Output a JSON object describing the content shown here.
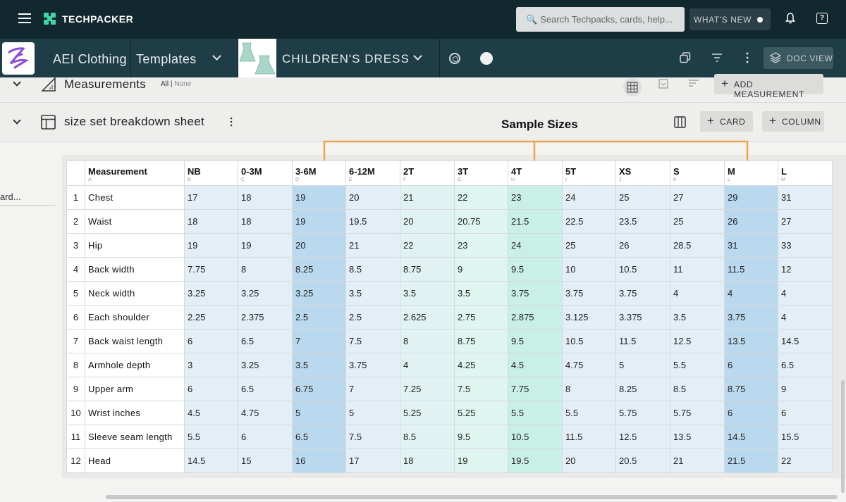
{
  "topbar": {
    "brand": "TECHPACKER",
    "search_placeholder": "Search Techpacks, cards, help...",
    "whats_new": "WHAT'S NEW"
  },
  "subbar": {
    "client": "AEI Clothing",
    "templates": "Templates",
    "product": "CHILDREN'S DRESS",
    "doc_view": "DOC VIEW"
  },
  "sections": {
    "measurements": {
      "title": "Measurements",
      "all": "All",
      "none": "None",
      "add_button": "ADD MEASUREMENT"
    },
    "sheet": {
      "title": "size set breakdown sheet",
      "card_button": "CARD",
      "column_button": "COLUMN"
    }
  },
  "annotation": {
    "label": "Sample Sizes"
  },
  "sidebar": {
    "truncated_text": "ard..."
  },
  "table": {
    "columns": [
      {
        "header": "Measurement",
        "letter": "A"
      },
      {
        "header": "NB",
        "letter": "B"
      },
      {
        "header": "0-3M",
        "letter": "C"
      },
      {
        "header": "3-6M",
        "letter": "D"
      },
      {
        "header": "6-12M",
        "letter": "E"
      },
      {
        "header": "2T",
        "letter": "F"
      },
      {
        "header": "3T",
        "letter": "G"
      },
      {
        "header": "4T",
        "letter": "H"
      },
      {
        "header": "5T",
        "letter": "I"
      },
      {
        "header": "XS",
        "letter": "J"
      },
      {
        "header": "S",
        "letter": "K"
      },
      {
        "header": "M",
        "letter": "L"
      },
      {
        "header": "L",
        "letter": "M"
      }
    ],
    "rows": [
      {
        "n": "1",
        "name": "Chest",
        "values": [
          "17",
          "18",
          "19",
          "20",
          "21",
          "22",
          "23",
          "24",
          "25",
          "27",
          "29",
          "31"
        ]
      },
      {
        "n": "2",
        "name": "Waist",
        "values": [
          "18",
          "18",
          "19",
          "19.5",
          "20",
          "20.75",
          "21.5",
          "22.5",
          "23.5",
          "25",
          "26",
          "27"
        ]
      },
      {
        "n": "3",
        "name": "Hip",
        "values": [
          "19",
          "19",
          "20",
          "21",
          "22",
          "23",
          "24",
          "25",
          "26",
          "28.5",
          "31",
          "33"
        ]
      },
      {
        "n": "4",
        "name": "Back width",
        "values": [
          "7.75",
          "8",
          "8.25",
          "8.5",
          "8.75",
          "9",
          "9.5",
          "10",
          "10.5",
          "11",
          "11.5",
          "12"
        ]
      },
      {
        "n": "5",
        "name": "Neck width",
        "values": [
          "3.25",
          "3.25",
          "3.25",
          "3.5",
          "3.5",
          "3.5",
          "3.75",
          "3.75",
          "3.75",
          "4",
          "4",
          "4"
        ]
      },
      {
        "n": "6",
        "name": "Each shoulder",
        "values": [
          "2.25",
          "2.375",
          "2.5",
          "2.5",
          "2.625",
          "2.75",
          "2.875",
          "3.125",
          "3.375",
          "3.5",
          "3.75",
          "4"
        ]
      },
      {
        "n": "7",
        "name": "Back waist length",
        "values": [
          "6",
          "6.5",
          "7",
          "7.5",
          "8",
          "8.75",
          "9.5",
          "10.5",
          "11.5",
          "12.5",
          "13.5",
          "14.5"
        ]
      },
      {
        "n": "8",
        "name": "Armhole depth",
        "values": [
          "3",
          "3.25",
          "3.5",
          "3.75",
          "4",
          "4.25",
          "4.5",
          "4.75",
          "5",
          "5.5",
          "6",
          "6.5"
        ]
      },
      {
        "n": "9",
        "name": "Upper arm",
        "values": [
          "6",
          "6.5",
          "6.75",
          "7",
          "7.25",
          "7.5",
          "7.75",
          "8",
          "8.25",
          "8.5",
          "8.75",
          "9"
        ]
      },
      {
        "n": "10",
        "name": "Wrist inches",
        "values": [
          "4.5",
          "4.75",
          "5",
          "5",
          "5.25",
          "5.25",
          "5.5",
          "5.5",
          "5.75",
          "5.75",
          "6",
          "6"
        ]
      },
      {
        "n": "11",
        "name": "Sleeve seam length",
        "values": [
          "5.5",
          "6",
          "6.5",
          "7.5",
          "8.5",
          "9.5",
          "10.5",
          "11.5",
          "12.5",
          "13.5",
          "14.5",
          "15.5"
        ]
      },
      {
        "n": "12",
        "name": "Head",
        "values": [
          "14.5",
          "15",
          "16",
          "17",
          "18",
          "19",
          "19.5",
          "20",
          "20.5",
          "21",
          "21.5",
          "22"
        ]
      }
    ]
  },
  "colors": {
    "topbar": "#12282f",
    "subbar": "#1f3d47",
    "accent_teal": "#3fd4a6",
    "annotation_orange": "#f0a34a",
    "sample_highlight": "#bad9ee"
  }
}
